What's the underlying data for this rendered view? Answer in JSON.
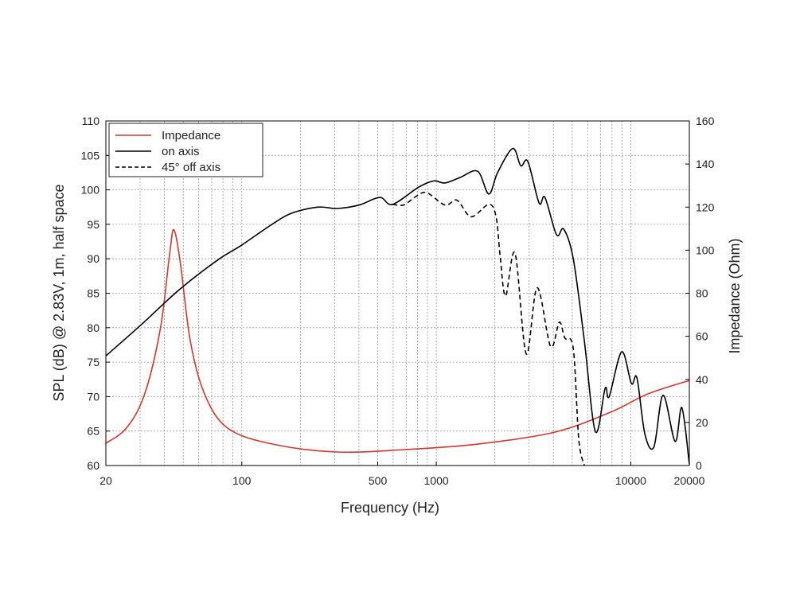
{
  "chart_data": {
    "type": "line",
    "xlabel": "Frequency (Hz)",
    "ylabel": "SPL (dB) @ 2.83V, 1m, half space",
    "y2label": "Impedance (Ohm)",
    "xscale": "log",
    "xlim": [
      20,
      20000
    ],
    "ylim": [
      60,
      110
    ],
    "y2lim": [
      0,
      160
    ],
    "grid": true,
    "legend_position": "top-left",
    "x_tick_labels": [
      {
        "value": 20,
        "label": "20"
      },
      {
        "value": 100,
        "label": "100"
      },
      {
        "value": 500,
        "label": "500"
      },
      {
        "value": 1000,
        "label": "1000"
      },
      {
        "value": 10000,
        "label": "10000"
      },
      {
        "value": 20000,
        "label": "20000"
      }
    ],
    "y_ticks": [
      60,
      65,
      70,
      75,
      80,
      85,
      90,
      95,
      100,
      105,
      110
    ],
    "y2_ticks": [
      0,
      20,
      40,
      60,
      80,
      100,
      120,
      140,
      160
    ],
    "series": [
      {
        "name": "Impedance",
        "axis": "right",
        "color": "#d9352a",
        "dash": "solid",
        "points": [
          [
            20,
            10.3
          ],
          [
            25.5,
            17.4
          ],
          [
            31.6,
            33
          ],
          [
            38.2,
            64
          ],
          [
            42.6,
            98.6
          ],
          [
            44.8,
            109.4
          ],
          [
            48.4,
            93.5
          ],
          [
            54.3,
            58
          ],
          [
            64.3,
            33.3
          ],
          [
            84.4,
            17.4
          ],
          [
            143,
            10
          ],
          [
            308,
            6.3
          ],
          [
            688,
            7.4
          ],
          [
            1650,
            10
          ],
          [
            4060,
            15.5
          ],
          [
            7880,
            24.8
          ],
          [
            12270,
            33.3
          ],
          [
            20000,
            39.5
          ]
        ]
      },
      {
        "name": "on axis",
        "axis": "left",
        "color": "#000000",
        "dash": "solid",
        "points": [
          [
            20,
            75.9
          ],
          [
            30.3,
            80.4
          ],
          [
            47.2,
            85.4
          ],
          [
            74.1,
            89.7
          ],
          [
            100,
            92
          ],
          [
            143,
            95
          ],
          [
            180,
            96.6
          ],
          [
            245,
            97.5
          ],
          [
            308,
            97.3
          ],
          [
            401,
            97.8
          ],
          [
            512,
            98.9
          ],
          [
            596,
            97.9
          ],
          [
            813,
            100.4
          ],
          [
            971,
            101.3
          ],
          [
            1109,
            101
          ],
          [
            1327,
            101.8
          ],
          [
            1630,
            102.7
          ],
          [
            1862,
            99.4
          ],
          [
            2066,
            102.5
          ],
          [
            2471,
            106
          ],
          [
            2717,
            103.5
          ],
          [
            2958,
            104.1
          ],
          [
            3375,
            98.1
          ],
          [
            3620,
            98.9
          ],
          [
            4150,
            93.5
          ],
          [
            4520,
            94.3
          ],
          [
            5060,
            90
          ],
          [
            5770,
            78.1
          ],
          [
            6580,
            64.9
          ],
          [
            7380,
            71.2
          ],
          [
            7740,
            70
          ],
          [
            8980,
            76.5
          ],
          [
            10070,
            71.9
          ],
          [
            10760,
            72.7
          ],
          [
            11810,
            64.6
          ],
          [
            13150,
            62.7
          ],
          [
            14660,
            70.2
          ],
          [
            16900,
            63.5
          ],
          [
            18300,
            68.4
          ],
          [
            20000,
            60.2
          ]
        ]
      },
      {
        "name": "45° off axis",
        "axis": "left",
        "color": "#000000",
        "dash": "dashed",
        "points": [
          [
            596,
            97.9
          ],
          [
            679,
            97.8
          ],
          [
            782,
            99
          ],
          [
            891,
            99.6
          ],
          [
            1109,
            97.8
          ],
          [
            1278,
            98.5
          ],
          [
            1510,
            96.1
          ],
          [
            1862,
            97.9
          ],
          [
            2030,
            96.1
          ],
          [
            2130,
            90.4
          ],
          [
            2270,
            84.6
          ],
          [
            2540,
            90.8
          ],
          [
            2900,
            76.2
          ],
          [
            3300,
            85.8
          ],
          [
            3870,
            77.3
          ],
          [
            4290,
            80.8
          ],
          [
            4580,
            78.5
          ],
          [
            5060,
            77
          ],
          [
            5400,
            63.8
          ],
          [
            5770,
            60
          ]
        ]
      }
    ]
  }
}
